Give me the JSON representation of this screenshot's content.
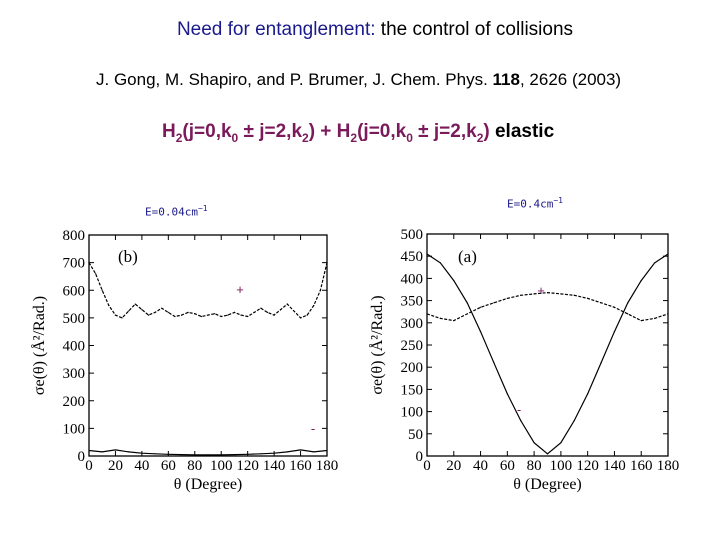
{
  "title": {
    "part1": "Need for entanglement:",
    "part2": " the control of collisions"
  },
  "reference": {
    "authors": "J. Gong, M. Shapiro, and P. Brumer, J. Chem. Phys. ",
    "volume": "118",
    "rest": ", 2626 (2003)"
  },
  "reaction": {
    "h1": "H",
    "s1": "2",
    "a1": "(j=0,k",
    "s2": "0",
    "pm1": " ± j=2,k",
    "s3": "2",
    "a2": ") + H",
    "s4": "2",
    "a3": "(j=0,k",
    "s5": "0",
    "pm2": " ± j=2,k",
    "s6": "2",
    "a4": ")",
    "elastic": " elastic"
  },
  "energy_left": {
    "text": "E=0.04cm",
    "sup": "−1"
  },
  "energy_right": {
    "text": "E=0.4cm",
    "sup": "−1"
  },
  "colors": {
    "title_blue": "#1a1a8c",
    "reaction_purple": "#7a1a5a"
  },
  "chart_data": [
    {
      "type": "line",
      "panel_label": "(b)",
      "xlabel": "θ (Degree)",
      "ylabel": "σe(θ) (Å²/Rad.)",
      "xlim": [
        0,
        180
      ],
      "ylim": [
        0,
        800
      ],
      "xticks": [
        0,
        20,
        40,
        60,
        80,
        100,
        120,
        140,
        160,
        180
      ],
      "yticks": [
        0,
        100,
        200,
        300,
        400,
        500,
        600,
        700,
        800
      ],
      "series": [
        {
          "marker": "+",
          "x": [
            0,
            5,
            10,
            15,
            20,
            25,
            30,
            35,
            40,
            45,
            50,
            55,
            60,
            65,
            70,
            75,
            80,
            85,
            90,
            95,
            100,
            105,
            110,
            115,
            120,
            125,
            130,
            135,
            140,
            145,
            150,
            155,
            160,
            165,
            170,
            175,
            180
          ],
          "y": [
            700,
            660,
            600,
            545,
            510,
            500,
            525,
            550,
            530,
            510,
            520,
            535,
            520,
            505,
            510,
            520,
            515,
            505,
            510,
            515,
            505,
            510,
            520,
            510,
            505,
            520,
            535,
            520,
            510,
            530,
            550,
            525,
            500,
            510,
            545,
            600,
            700
          ]
        },
        {
          "marker": "-",
          "x": [
            0,
            10,
            20,
            30,
            40,
            50,
            60,
            70,
            80,
            90,
            100,
            110,
            120,
            130,
            140,
            150,
            160,
            170,
            180
          ],
          "y": [
            20,
            15,
            22,
            15,
            10,
            8,
            6,
            5,
            4,
            4,
            4,
            5,
            6,
            8,
            10,
            15,
            22,
            15,
            20
          ]
        }
      ]
    },
    {
      "type": "line",
      "panel_label": "(a)",
      "xlabel": "θ (Degree)",
      "ylabel": "σe(θ) (Å²/Rad.)",
      "xlim": [
        0,
        180
      ],
      "ylim": [
        0,
        500
      ],
      "xticks": [
        0,
        20,
        40,
        60,
        80,
        100,
        120,
        140,
        160,
        180
      ],
      "yticks": [
        0,
        50,
        100,
        150,
        200,
        250,
        300,
        350,
        400,
        450,
        500
      ],
      "series": [
        {
          "marker": "+",
          "x": [
            0,
            10,
            20,
            30,
            40,
            50,
            60,
            70,
            80,
            90,
            100,
            110,
            120,
            130,
            140,
            150,
            160,
            170,
            180
          ],
          "y": [
            320,
            310,
            305,
            320,
            335,
            345,
            355,
            362,
            365,
            368,
            365,
            362,
            355,
            345,
            335,
            320,
            305,
            310,
            320
          ]
        },
        {
          "marker": "-",
          "x": [
            0,
            10,
            20,
            30,
            40,
            50,
            60,
            70,
            80,
            90,
            100,
            110,
            120,
            130,
            140,
            150,
            160,
            170,
            180
          ],
          "y": [
            455,
            435,
            395,
            345,
            280,
            210,
            140,
            80,
            30,
            5,
            30,
            80,
            140,
            210,
            280,
            345,
            395,
            435,
            455
          ]
        }
      ]
    }
  ]
}
